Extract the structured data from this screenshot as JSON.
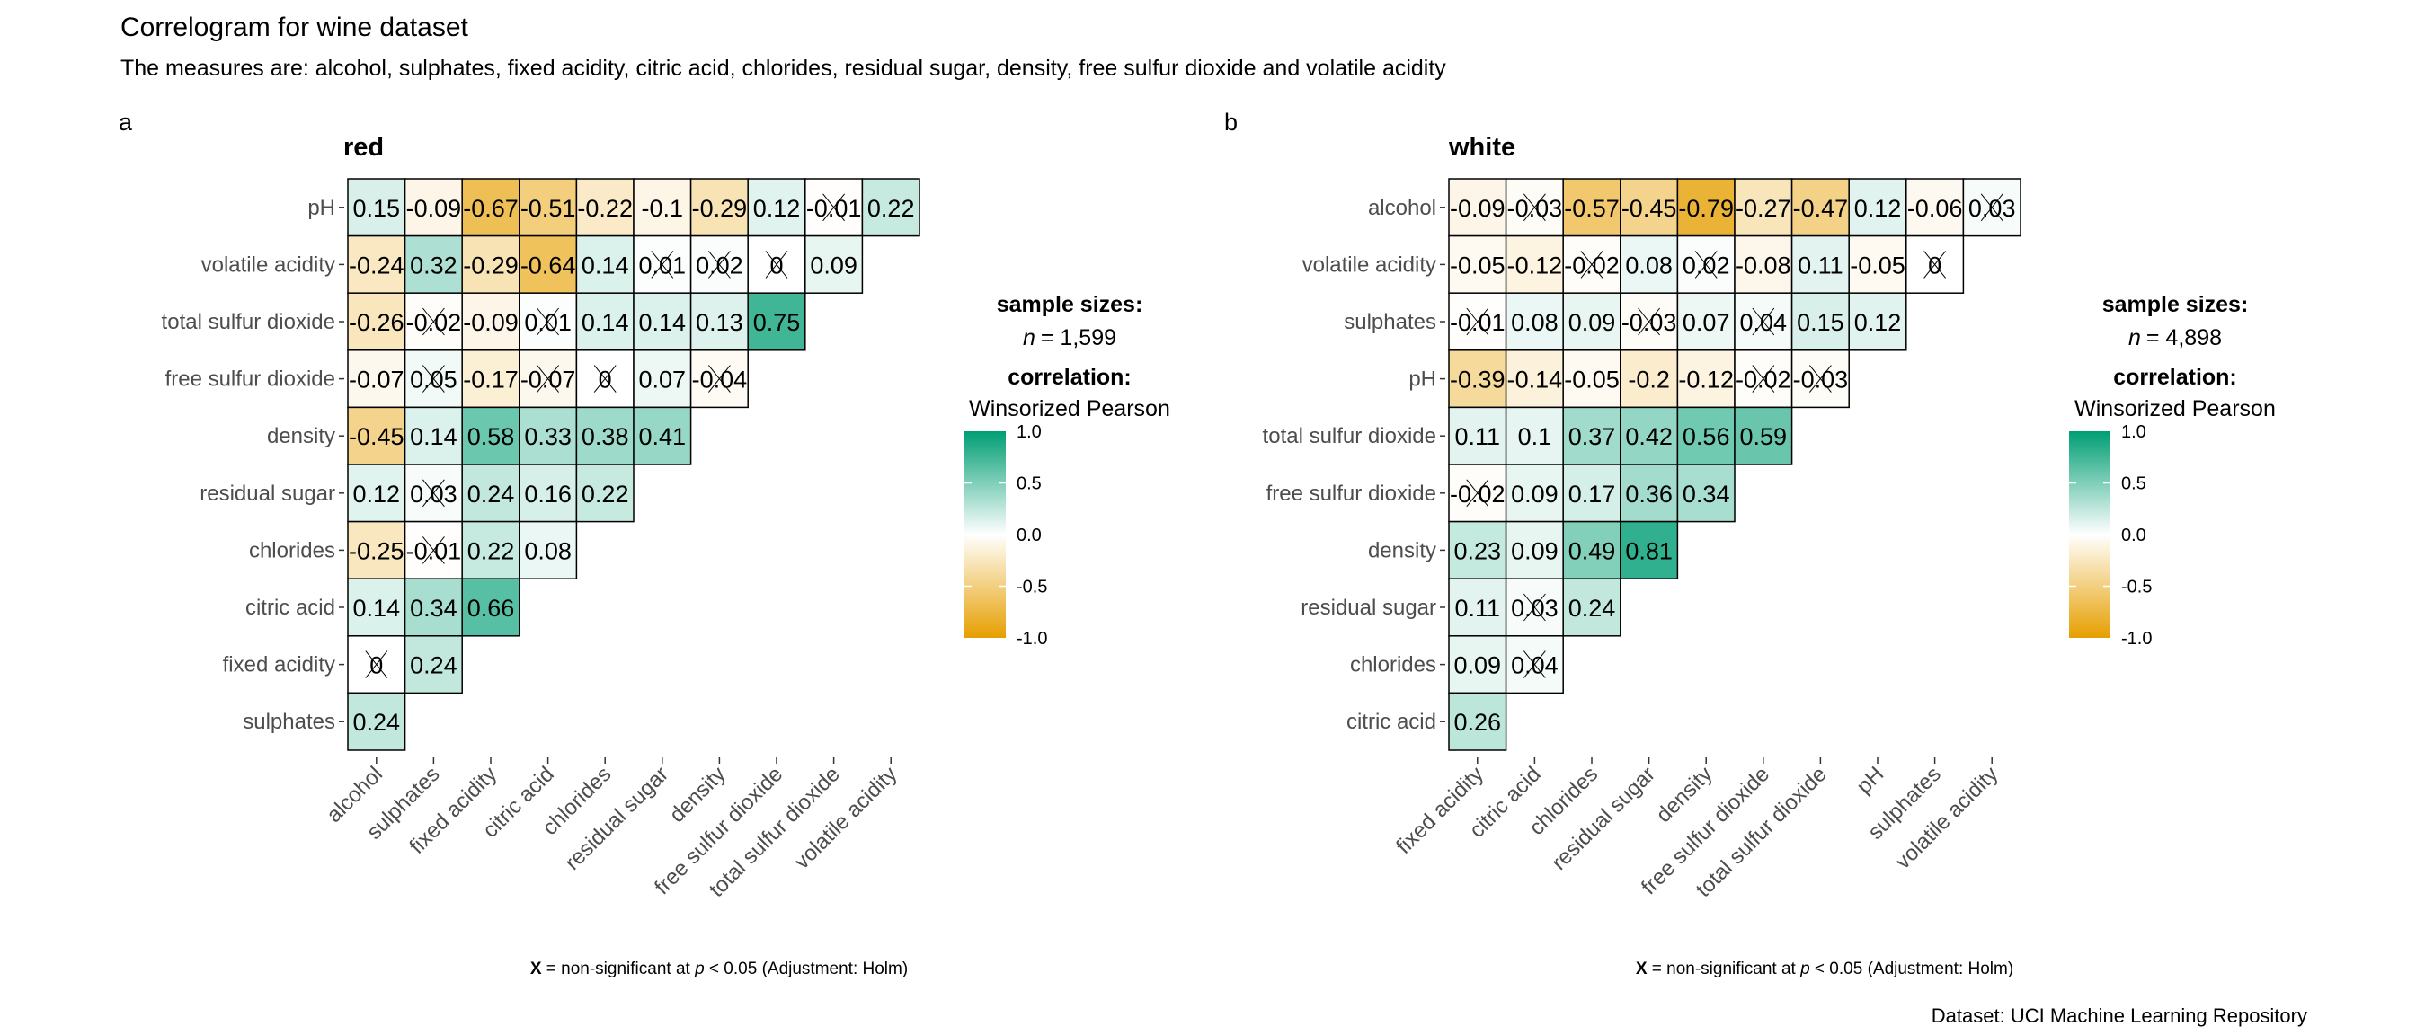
{
  "title": "Correlogram for wine dataset",
  "subtitle": "The measures are: alcohol, sulphates, fixed acidity, citric acid, chlorides, residual sugar, density, free sulfur dioxide and volatile acidity",
  "caption": "Dataset: UCI Machine Learning Repository",
  "colors": {
    "negative": "#E69F00",
    "zero": "#FFFFFF",
    "positive": "#009E73",
    "border": "#000000"
  },
  "chart_data": [
    {
      "type": "heatmap",
      "panel_tag": "a",
      "title": "red",
      "legend": {
        "sample_heading": "sample sizes:",
        "n_label": "n",
        "n_value": "= 1,599",
        "corr_heading": "correlation:",
        "corr_method": "Winsorized Pearson",
        "ticks": [
          "1.0",
          "0.5",
          "0.0",
          "-0.5",
          "-1.0"
        ],
        "range": [
          -1,
          1
        ],
        "placement": "right"
      },
      "footnote": {
        "symbol": "X",
        "text_a": " = non-significant at ",
        "p": "p",
        "text_b": " < 0.05 (Adjustment: Holm)"
      },
      "x_labels": [
        "alcohol",
        "sulphates",
        "fixed acidity",
        "citric acid",
        "chlorides",
        "residual sugar",
        "density",
        "free sulfur dioxide",
        "total sulfur dioxide",
        "volatile acidity"
      ],
      "y_labels": [
        "pH",
        "volatile acidity",
        "total sulfur dioxide",
        "free sulfur dioxide",
        "density",
        "residual sugar",
        "chlorides",
        "citric acid",
        "fixed acidity",
        "sulphates"
      ],
      "rows": [
        {
          "values": [
            "0.15",
            "-0.09",
            "-0.67",
            "-0.51",
            "-0.22",
            "-0.1",
            "-0.29",
            "0.12",
            "-0.01",
            "0.22"
          ],
          "nonsig": [
            0,
            0,
            0,
            0,
            0,
            0,
            0,
            0,
            1,
            0
          ]
        },
        {
          "values": [
            "-0.24",
            "0.32",
            "-0.29",
            "-0.64",
            "0.14",
            "0.01",
            "0.02",
            "0",
            "0.09"
          ],
          "nonsig": [
            0,
            0,
            0,
            0,
            0,
            1,
            1,
            1,
            0
          ]
        },
        {
          "values": [
            "-0.26",
            "-0.02",
            "-0.09",
            "0.01",
            "0.14",
            "0.14",
            "0.13",
            "0.75"
          ],
          "nonsig": [
            0,
            1,
            0,
            1,
            0,
            0,
            0,
            0
          ]
        },
        {
          "values": [
            "-0.07",
            "0.05",
            "-0.17",
            "-0.07",
            "0",
            "0.07",
            "-0.04"
          ],
          "nonsig": [
            0,
            1,
            0,
            1,
            1,
            0,
            1
          ]
        },
        {
          "values": [
            "-0.45",
            "0.14",
            "0.58",
            "0.33",
            "0.38",
            "0.41"
          ],
          "nonsig": [
            0,
            0,
            0,
            0,
            0,
            0
          ]
        },
        {
          "values": [
            "0.12",
            "0.03",
            "0.24",
            "0.16",
            "0.22"
          ],
          "nonsig": [
            0,
            1,
            0,
            0,
            0
          ]
        },
        {
          "values": [
            "-0.25",
            "-0.01",
            "0.22",
            "0.08"
          ],
          "nonsig": [
            0,
            1,
            0,
            0
          ]
        },
        {
          "values": [
            "0.14",
            "0.34",
            "0.66"
          ],
          "nonsig": [
            0,
            0,
            0
          ]
        },
        {
          "values": [
            "0",
            "0.24"
          ],
          "nonsig": [
            1,
            0
          ]
        },
        {
          "values": [
            "0.24"
          ],
          "nonsig": [
            0
          ]
        }
      ]
    },
    {
      "type": "heatmap",
      "panel_tag": "b",
      "title": "white",
      "legend": {
        "sample_heading": "sample sizes:",
        "n_label": "n",
        "n_value": "= 4,898",
        "corr_heading": "correlation:",
        "corr_method": "Winsorized Pearson",
        "ticks": [
          "1.0",
          "0.5",
          "0.0",
          "-0.5",
          "-1.0"
        ],
        "range": [
          -1,
          1
        ],
        "placement": "right"
      },
      "footnote": {
        "symbol": "X",
        "text_a": " = non-significant at ",
        "p": "p",
        "text_b": " < 0.05 (Adjustment: Holm)"
      },
      "x_labels": [
        "fixed acidity",
        "citric acid",
        "chlorides",
        "residual sugar",
        "density",
        "free sulfur dioxide",
        "total sulfur dioxide",
        "pH",
        "sulphates",
        "volatile acidity"
      ],
      "y_labels": [
        "alcohol",
        "volatile acidity",
        "sulphates",
        "pH",
        "total sulfur dioxide",
        "free sulfur dioxide",
        "density",
        "residual sugar",
        "chlorides",
        "citric acid"
      ],
      "rows": [
        {
          "values": [
            "-0.09",
            "-0.03",
            "-0.57",
            "-0.45",
            "-0.79",
            "-0.27",
            "-0.47",
            "0.12",
            "-0.06",
            "0.03"
          ],
          "nonsig": [
            0,
            1,
            0,
            0,
            0,
            0,
            0,
            0,
            0,
            1
          ]
        },
        {
          "values": [
            "-0.05",
            "-0.12",
            "-0.02",
            "0.08",
            "0.02",
            "-0.08",
            "0.11",
            "-0.05",
            "0"
          ],
          "nonsig": [
            0,
            0,
            1,
            0,
            1,
            0,
            0,
            0,
            1
          ]
        },
        {
          "values": [
            "-0.01",
            "0.08",
            "0.09",
            "-0.03",
            "0.07",
            "0.04",
            "0.15",
            "0.12"
          ],
          "nonsig": [
            1,
            0,
            0,
            1,
            0,
            1,
            0,
            0
          ]
        },
        {
          "values": [
            "-0.39",
            "-0.14",
            "-0.05",
            "-0.2",
            "-0.12",
            "-0.02",
            "-0.03"
          ],
          "nonsig": [
            0,
            0,
            0,
            0,
            0,
            1,
            1
          ]
        },
        {
          "values": [
            "0.11",
            "0.1",
            "0.37",
            "0.42",
            "0.56",
            "0.59"
          ],
          "nonsig": [
            0,
            0,
            0,
            0,
            0,
            0
          ]
        },
        {
          "values": [
            "-0.02",
            "0.09",
            "0.17",
            "0.36",
            "0.34"
          ],
          "nonsig": [
            1,
            0,
            0,
            0,
            0
          ]
        },
        {
          "values": [
            "0.23",
            "0.09",
            "0.49",
            "0.81"
          ],
          "nonsig": [
            0,
            0,
            0,
            0
          ]
        },
        {
          "values": [
            "0.11",
            "0.03",
            "0.24"
          ],
          "nonsig": [
            0,
            1,
            0
          ]
        },
        {
          "values": [
            "0.09",
            "0.04"
          ],
          "nonsig": [
            0,
            1
          ]
        },
        {
          "values": [
            "0.26"
          ],
          "nonsig": [
            0
          ]
        }
      ]
    }
  ]
}
